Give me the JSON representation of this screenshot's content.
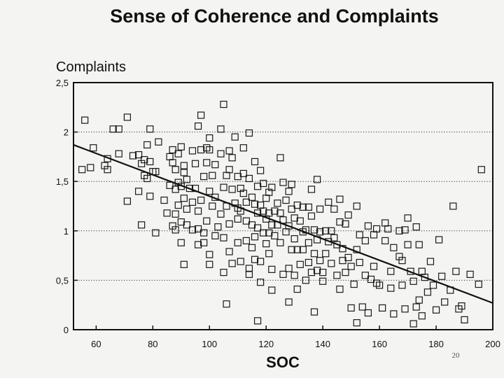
{
  "chart_data": {
    "type": "scatter",
    "title": "Sense of Coherence and Complaints",
    "ylabel": "Complaints",
    "xlabel": "SOC",
    "page_number": "20",
    "xlim": [
      52,
      200
    ],
    "ylim": [
      0,
      2.5
    ],
    "x_ticks": [
      {
        "value": 60,
        "label": "60"
      },
      {
        "value": 80,
        "label": "80"
      },
      {
        "value": 100,
        "label": "100"
      },
      {
        "value": 120,
        "label": "120"
      },
      {
        "value": 140,
        "label": "140"
      },
      {
        "value": 160,
        "label": "160"
      },
      {
        "value": 180,
        "label": "180"
      },
      {
        "value": 200,
        "label": "200"
      }
    ],
    "y_ticks": [
      {
        "value": 0,
        "label": "0"
      },
      {
        "value": 0.5,
        "label": "0,5"
      },
      {
        "value": 1,
        "label": "1"
      },
      {
        "value": 1.5,
        "label": "1,5"
      },
      {
        "value": 2,
        "label": "2"
      },
      {
        "value": 2.5,
        "label": "2,5"
      }
    ],
    "grid": {
      "horizontal": [
        0.5,
        1,
        1.5,
        2
      ],
      "style": "dotted"
    },
    "trendline": {
      "x": [
        52,
        200
      ],
      "y": [
        1.87,
        0.27
      ]
    },
    "marker": "open-square",
    "points": [
      [
        56,
        2.12
      ],
      [
        55,
        1.62
      ],
      [
        58,
        1.64
      ],
      [
        59,
        1.84
      ],
      [
        63,
        1.66
      ],
      [
        64,
        1.73
      ],
      [
        64,
        1.62
      ],
      [
        66,
        2.03
      ],
      [
        68,
        2.03
      ],
      [
        68,
        1.78
      ],
      [
        71,
        2.15
      ],
      [
        71,
        1.3
      ],
      [
        73,
        1.76
      ],
      [
        75,
        1.77
      ],
      [
        75,
        1.4
      ],
      [
        76,
        1.68
      ],
      [
        76,
        1.06
      ],
      [
        77,
        1.72
      ],
      [
        77,
        1.56
      ],
      [
        78,
        1.87
      ],
      [
        78,
        1.53
      ],
      [
        79,
        2.03
      ],
      [
        79,
        1.35
      ],
      [
        79,
        1.7
      ],
      [
        80,
        1.6
      ],
      [
        81,
        1.6
      ],
      [
        81,
        0.98
      ],
      [
        82,
        1.9
      ],
      [
        84,
        1.31
      ],
      [
        85,
        1.18
      ],
      [
        86,
        1.75
      ],
      [
        86,
        1.46
      ],
      [
        87,
        1.05
      ],
      [
        87,
        1.69
      ],
      [
        87,
        1.82
      ],
      [
        88,
        1.42
      ],
      [
        88,
        1.17
      ],
      [
        88,
        1.01
      ],
      [
        88,
        1.62
      ],
      [
        89,
        1.78
      ],
      [
        89,
        1.49
      ],
      [
        89,
        1.26
      ],
      [
        90,
        1.85
      ],
      [
        90,
        1.45
      ],
      [
        90,
        1.09
      ],
      [
        90,
        0.88
      ],
      [
        91,
        1.59
      ],
      [
        91,
        1.33
      ],
      [
        91,
        0.66
      ],
      [
        91,
        1.66
      ],
      [
        92,
        1.52
      ],
      [
        92,
        1.22
      ],
      [
        92,
        1.06
      ],
      [
        93,
        1.43
      ],
      [
        94,
        1.81
      ],
      [
        94,
        1.01
      ],
      [
        94,
        1.29
      ],
      [
        95,
        1.68
      ],
      [
        95,
        1.43
      ],
      [
        96,
        1.2
      ],
      [
        96,
        1.02
      ],
      [
        96,
        0.86
      ],
      [
        96,
        2.06
      ],
      [
        97,
        1.82
      ],
      [
        97,
        1.31
      ],
      [
        97,
        2.17
      ],
      [
        98,
        1.55
      ],
      [
        98,
        0.98
      ],
      [
        98,
        0.88
      ],
      [
        99,
        1.84
      ],
      [
        99,
        1.69
      ],
      [
        99,
        1.1
      ],
      [
        100,
        1.82
      ],
      [
        100,
        1.4
      ],
      [
        100,
        0.76
      ],
      [
        100,
        1.94
      ],
      [
        100,
        0.66
      ],
      [
        101,
        1.25
      ],
      [
        101,
        1.56
      ],
      [
        102,
        1.34
      ],
      [
        102,
        1.67
      ],
      [
        102,
        0.95
      ],
      [
        103,
        1.04
      ],
      [
        104,
        2.03
      ],
      [
        104,
        1.78
      ],
      [
        104,
        1.17
      ],
      [
        105,
        2.28
      ],
      [
        105,
        1.44
      ],
      [
        105,
        0.93
      ],
      [
        105,
        0.58
      ],
      [
        106,
        1.25
      ],
      [
        106,
        1.56
      ],
      [
        106,
        0.26
      ],
      [
        107,
        1.81
      ],
      [
        107,
        1.62
      ],
      [
        107,
        1.07
      ],
      [
        107,
        0.79
      ],
      [
        108,
        1.74
      ],
      [
        108,
        1.42
      ],
      [
        108,
        0.67
      ],
      [
        109,
        1.28
      ],
      [
        109,
        1.95
      ],
      [
        110,
        1.23
      ],
      [
        110,
        1.55
      ],
      [
        110,
        1.12
      ],
      [
        110,
        0.88
      ],
      [
        111,
        1.2
      ],
      [
        111,
        1.43
      ],
      [
        111,
        0.69
      ],
      [
        112,
        1.58
      ],
      [
        112,
        1.38
      ],
      [
        112,
        1.84
      ],
      [
        113,
        1.1
      ],
      [
        113,
        1.29
      ],
      [
        113,
        0.9
      ],
      [
        114,
        1.99
      ],
      [
        114,
        1.53
      ],
      [
        114,
        0.56
      ],
      [
        114,
        0.62
      ],
      [
        115,
        1.34
      ],
      [
        115,
        1.06
      ],
      [
        115,
        0.83
      ],
      [
        116,
        1.7
      ],
      [
        116,
        1.27
      ],
      [
        116,
        0.94
      ],
      [
        116,
        0.71
      ],
      [
        117,
        1.18
      ],
      [
        117,
        1.45
      ],
      [
        117,
        1.03
      ],
      [
        117,
        0.09
      ],
      [
        118,
        1.61
      ],
      [
        118,
        1.26
      ],
      [
        118,
        0.69
      ],
      [
        118,
        0.48
      ],
      [
        119,
        1.2
      ],
      [
        119,
        0.98
      ],
      [
        119,
        1.48
      ],
      [
        120,
        1.33
      ],
      [
        120,
        1.12
      ],
      [
        120,
        0.87
      ],
      [
        121,
        1.39
      ],
      [
        121,
        1.18
      ],
      [
        121,
        0.77
      ],
      [
        121,
        0.98
      ],
      [
        122,
        1.44
      ],
      [
        122,
        1.06
      ],
      [
        122,
        0.61
      ],
      [
        122,
        0.4
      ],
      [
        123,
        1.2
      ],
      [
        123,
        0.95
      ],
      [
        124,
        1.28
      ],
      [
        124,
        1.06
      ],
      [
        125,
        1.18
      ],
      [
        125,
        0.88
      ],
      [
        125,
        1.74
      ],
      [
        126,
        1.49
      ],
      [
        126,
        1.11
      ],
      [
        126,
        0.56
      ],
      [
        127,
        1.31
      ],
      [
        127,
        0.99
      ],
      [
        128,
        1.4
      ],
      [
        128,
        1.05
      ],
      [
        128,
        0.62
      ],
      [
        128,
        0.28
      ],
      [
        129,
        1.47
      ],
      [
        129,
        1.22
      ],
      [
        129,
        0.81
      ],
      [
        130,
        1.13
      ],
      [
        130,
        0.92
      ],
      [
        130,
        0.55
      ],
      [
        131,
        0.81
      ],
      [
        131,
        1.26
      ],
      [
        131,
        0.41
      ],
      [
        132,
        1.1
      ],
      [
        132,
        0.66
      ],
      [
        133,
        0.99
      ],
      [
        133,
        0.81
      ],
      [
        133,
        1.24
      ],
      [
        134,
        1.01
      ],
      [
        134,
        0.5
      ],
      [
        135,
        0.88
      ],
      [
        135,
        1.24
      ],
      [
        135,
        0.68
      ],
      [
        136,
        1.42
      ],
      [
        136,
        1.15
      ],
      [
        136,
        0.58
      ],
      [
        137,
        1.01
      ],
      [
        137,
        0.77
      ],
      [
        137,
        0.18
      ],
      [
        138,
        1.52
      ],
      [
        138,
        0.91
      ],
      [
        138,
        0.6
      ],
      [
        139,
        1.22
      ],
      [
        139,
        0.99
      ],
      [
        139,
        0.7
      ],
      [
        140,
        0.49
      ],
      [
        140,
        0.58
      ],
      [
        141,
        1.0
      ],
      [
        141,
        0.77
      ],
      [
        142,
        0.89
      ],
      [
        142,
        1.29
      ],
      [
        143,
        1.0
      ],
      [
        143,
        0.67
      ],
      [
        144,
        1.22
      ],
      [
        144,
        0.93
      ],
      [
        145,
        0.86
      ],
      [
        145,
        0.55
      ],
      [
        146,
        1.32
      ],
      [
        146,
        1.09
      ],
      [
        146,
        0.41
      ],
      [
        147,
        0.82
      ],
      [
        147,
        0.7
      ],
      [
        148,
        1.07
      ],
      [
        148,
        0.58
      ],
      [
        149,
        1.16
      ],
      [
        149,
        0.73
      ],
      [
        150,
        0.64
      ],
      [
        150,
        0.22
      ],
      [
        151,
        0.46
      ],
      [
        152,
        1.25
      ],
      [
        152,
        0.81
      ],
      [
        152,
        0.07
      ],
      [
        153,
        0.96
      ],
      [
        153,
        0.68
      ],
      [
        154,
        0.23
      ],
      [
        155,
        0.9
      ],
      [
        155,
        0.55
      ],
      [
        156,
        1.05
      ],
      [
        156,
        0.17
      ],
      [
        157,
        0.51
      ],
      [
        158,
        0.96
      ],
      [
        158,
        0.64
      ],
      [
        159,
        1.02
      ],
      [
        159,
        0.47
      ],
      [
        160,
        0.45
      ],
      [
        161,
        0.22
      ],
      [
        162,
        1.08
      ],
      [
        162,
        0.9
      ],
      [
        163,
        1.02
      ],
      [
        164,
        0.59
      ],
      [
        164,
        0.42
      ],
      [
        165,
        0.83
      ],
      [
        165,
        0.16
      ],
      [
        167,
        1.0
      ],
      [
        167,
        0.74
      ],
      [
        168,
        0.7
      ],
      [
        168,
        0.45
      ],
      [
        169,
        1.01
      ],
      [
        169,
        0.21
      ],
      [
        170,
        0.86
      ],
      [
        170,
        1.13
      ],
      [
        171,
        0.59
      ],
      [
        172,
        0.49
      ],
      [
        172,
        0.06
      ],
      [
        173,
        1.04
      ],
      [
        173,
        0.23
      ],
      [
        174,
        0.86
      ],
      [
        174,
        0.3
      ],
      [
        175,
        0.59
      ],
      [
        175,
        0.14
      ],
      [
        176,
        0.53
      ],
      [
        177,
        0.38
      ],
      [
        178,
        0.69
      ],
      [
        179,
        0.45
      ],
      [
        180,
        0.2
      ],
      [
        181,
        0.91
      ],
      [
        182,
        0.54
      ],
      [
        183,
        0.28
      ],
      [
        185,
        0.4
      ],
      [
        186,
        1.25
      ],
      [
        187,
        0.59
      ],
      [
        188,
        0.21
      ],
      [
        189,
        0.24
      ],
      [
        190,
        0.1
      ],
      [
        192,
        0.56
      ],
      [
        195,
        0.46
      ],
      [
        196,
        1.62
      ]
    ]
  }
}
